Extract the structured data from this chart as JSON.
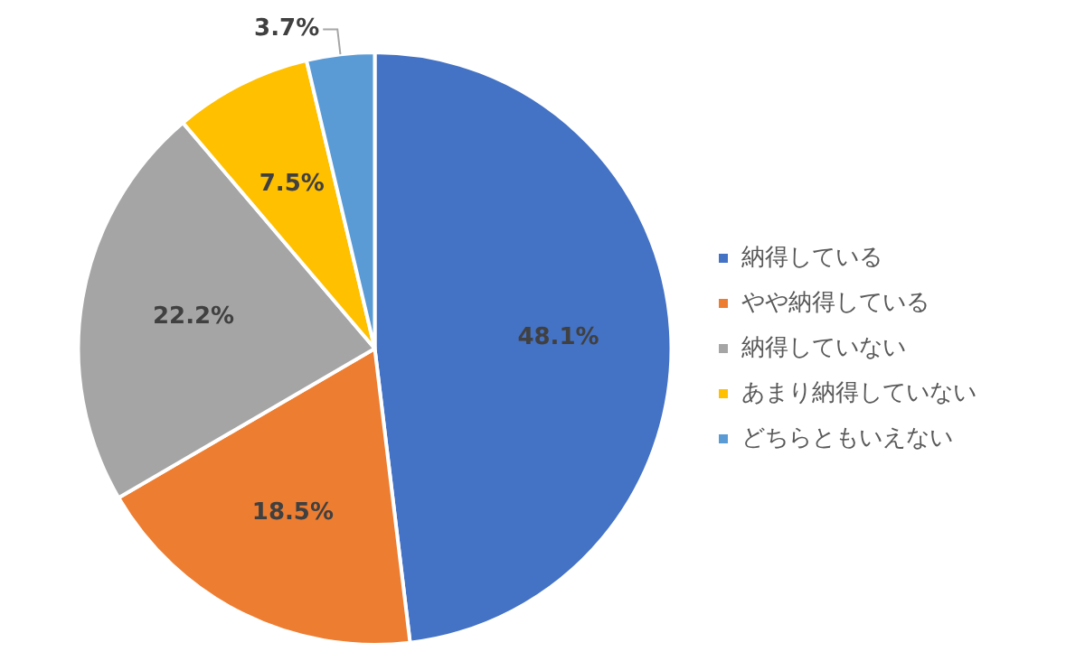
{
  "chart_data": {
    "type": "pie",
    "categories": [
      "納得している",
      "やや納得している",
      "納得していない",
      "あまり納得していない",
      "どちらともいえない"
    ],
    "values": [
      48.1,
      18.5,
      22.2,
      7.5,
      3.7
    ],
    "colors": [
      "#4472c4",
      "#ed7d31",
      "#a5a5a5",
      "#ffc000",
      "#5b9bd5"
    ],
    "value_labels": [
      "48.1%",
      "18.5%",
      "22.2%",
      "7.5%",
      "3.7%"
    ],
    "legend": "right"
  }
}
